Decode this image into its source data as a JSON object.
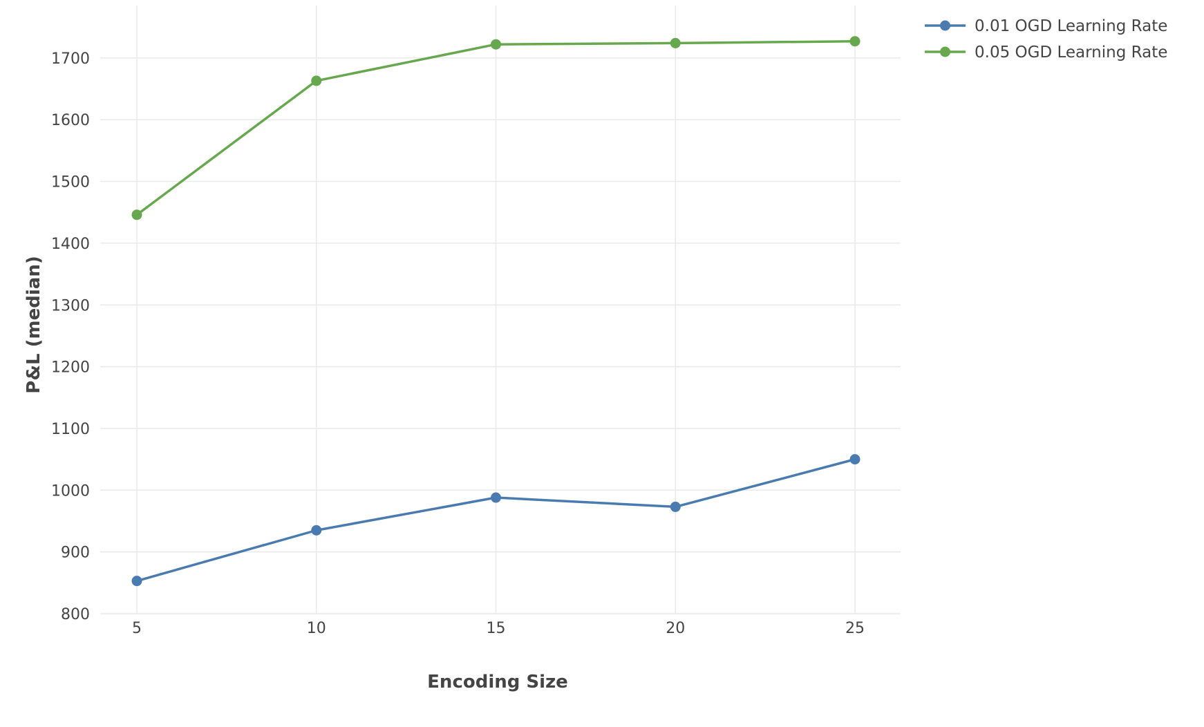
{
  "chart_data": {
    "type": "line",
    "title": "",
    "xlabel": "Encoding Size",
    "ylabel": "P&L (median)",
    "x": [
      5,
      10,
      15,
      20,
      25
    ],
    "xlim": [
      4,
      26.25
    ],
    "ylim": [
      800,
      1750
    ],
    "xticks": [
      "5",
      "10",
      "15",
      "20",
      "25"
    ],
    "yticks": [
      "800",
      "900",
      "1000",
      "1100",
      "1200",
      "1300",
      "1400",
      "1500",
      "1600",
      "1700"
    ],
    "grid": true,
    "legend_position": "top-right",
    "series": [
      {
        "name": "0.01 OGD Learning Rate",
        "color": "#4a7bb0",
        "values": [
          853,
          935,
          988,
          973,
          1050
        ]
      },
      {
        "name": "0.05 OGD Learning Rate",
        "color": "#67a84e",
        "values": [
          1446,
          1663,
          1722,
          1724,
          1727
        ]
      }
    ]
  }
}
